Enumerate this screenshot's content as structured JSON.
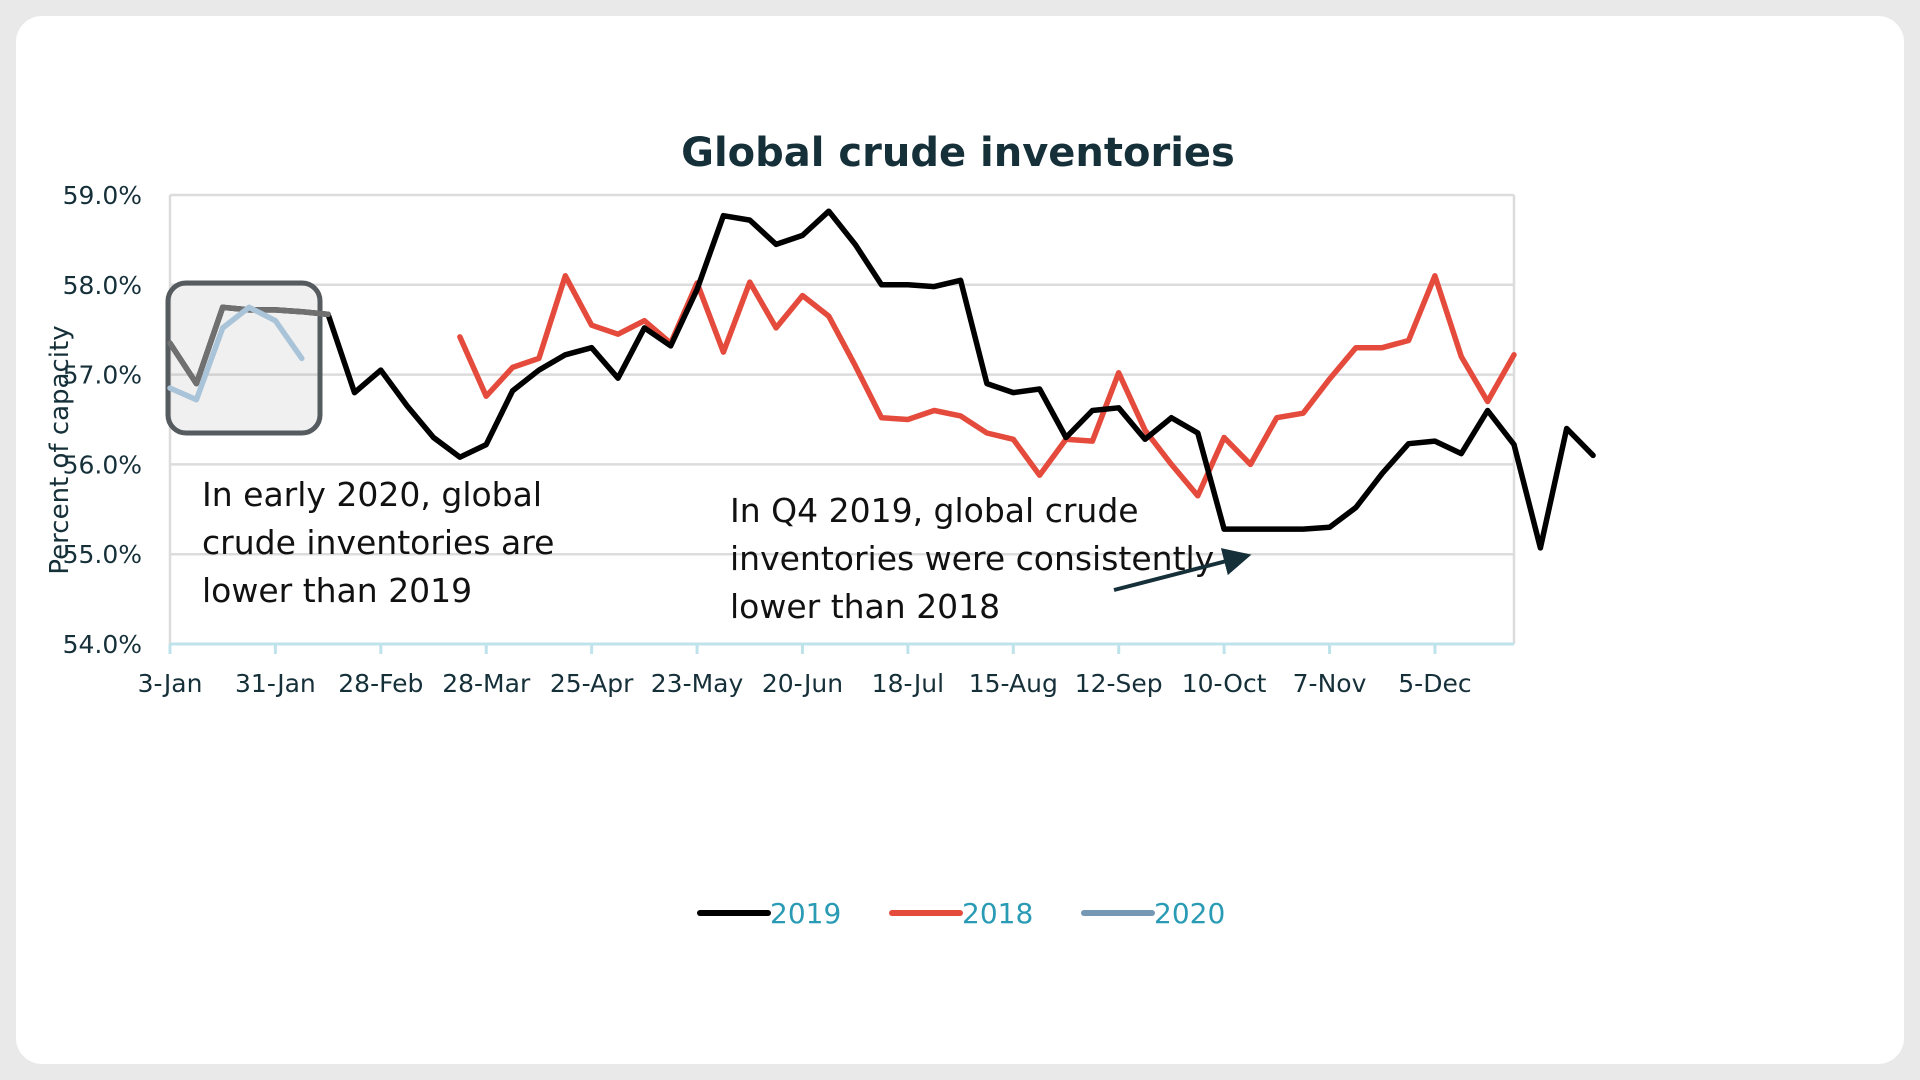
{
  "chart_data": {
    "type": "line",
    "title": "Global crude inventories",
    "ylabel": "Percent of capacity",
    "xlabel": "",
    "ylim": [
      54.0,
      59.0
    ],
    "yticks": [
      54.0,
      55.0,
      56.0,
      57.0,
      58.0,
      59.0
    ],
    "ytick_labels": [
      "54.0%",
      "55.0%",
      "56.0%",
      "57.0%",
      "58.0%",
      "59.0%"
    ],
    "x_tick_labels": [
      "3-Jan",
      "31-Jan",
      "28-Feb",
      "28-Mar",
      "25-Apr",
      "23-May",
      "20-Jun",
      "18-Jul",
      "15-Aug",
      "12-Sep",
      "10-Oct",
      "7-Nov",
      "5-Dec"
    ],
    "x_tick_weeks": [
      0,
      4,
      8,
      12,
      16,
      20,
      24,
      28,
      32,
      36,
      40,
      44,
      48
    ],
    "x_domain_weeks": [
      0,
      51
    ],
    "grid": true,
    "legend_position": "bottom",
    "series": [
      {
        "name": "2019",
        "color": "#000000",
        "start_week": 0,
        "values": [
          57.35,
          56.9,
          57.75,
          57.72,
          57.72,
          57.7,
          57.67,
          56.8,
          57.05,
          56.65,
          56.3,
          56.08,
          56.22,
          56.82,
          57.05,
          57.22,
          57.3,
          56.96,
          57.52,
          57.32,
          57.95,
          58.77,
          58.72,
          58.45,
          58.55,
          58.82,
          58.45,
          58.0,
          58.0,
          57.98,
          58.05,
          56.9,
          56.8,
          56.84,
          56.3,
          56.6,
          56.63,
          56.28,
          56.52,
          56.35,
          55.28,
          55.28,
          55.28,
          55.28,
          55.3,
          55.52,
          55.9,
          56.23,
          56.26,
          56.12,
          56.6,
          56.22,
          55.07,
          56.4,
          56.1
        ]
      },
      {
        "name": "2018",
        "color": "#e54b3c",
        "start_week": 11,
        "values": [
          57.42,
          56.76,
          57.08,
          57.18,
          58.1,
          57.55,
          57.45,
          57.6,
          57.35,
          58.02,
          57.25,
          58.03,
          57.52,
          57.88,
          57.65,
          57.1,
          56.52,
          56.5,
          56.6,
          56.54,
          56.35,
          56.28,
          55.88,
          56.28,
          56.26,
          57.02,
          56.38,
          56.0,
          55.65,
          56.3,
          56.0,
          56.52,
          56.57,
          56.95,
          57.3,
          57.3,
          57.38,
          58.1,
          57.2,
          56.7,
          57.22
        ]
      },
      {
        "name": "2020",
        "color": "#a9c3d8",
        "legend_color": "#7598b4",
        "start_week": 0,
        "values": [
          56.85,
          56.72,
          57.52,
          57.75,
          57.6,
          57.18
        ]
      }
    ],
    "annotations": [
      {
        "text_lines": [
          "In early 2020, global",
          "crude inventories are",
          "lower than 2019"
        ]
      },
      {
        "text_lines": [
          "In Q4 2019, global crude",
          "inventories were consistently",
          "lower than 2018"
        ]
      }
    ]
  }
}
